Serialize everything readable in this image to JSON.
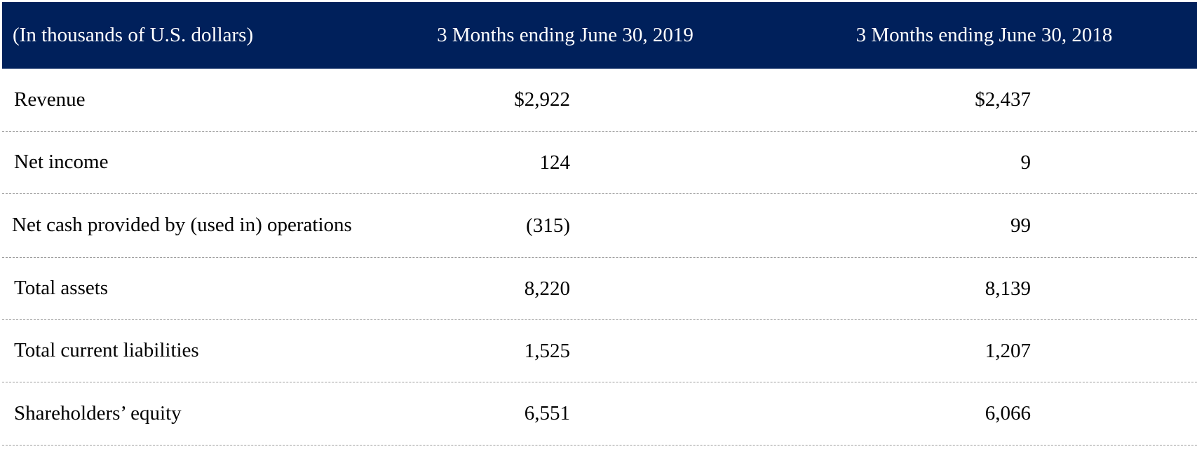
{
  "table": {
    "header": {
      "label": "(In thousands of U.S. dollars)",
      "col_2019": "3 Months ending June 30, 2019",
      "col_2018": "3 Months ending June 30, 2018",
      "background": "#00205b"
    },
    "rows": [
      {
        "label": "Revenue",
        "v2019": "$2,922",
        "v2018": "$2,437"
      },
      {
        "label": "Net income",
        "v2019": "124",
        "v2018": "9"
      },
      {
        "label": "Net cash provided by (used in) operations",
        "v2019": "(315)",
        "v2018": "99"
      },
      {
        "label": "Total assets",
        "v2019": "8,220",
        "v2018": "8,139"
      },
      {
        "label": "Total current liabilities",
        "v2019": "1,525",
        "v2018": "1,207"
      },
      {
        "label": "Shareholders’ equity",
        "v2019": "6,551",
        "v2018": "6,066"
      }
    ]
  }
}
